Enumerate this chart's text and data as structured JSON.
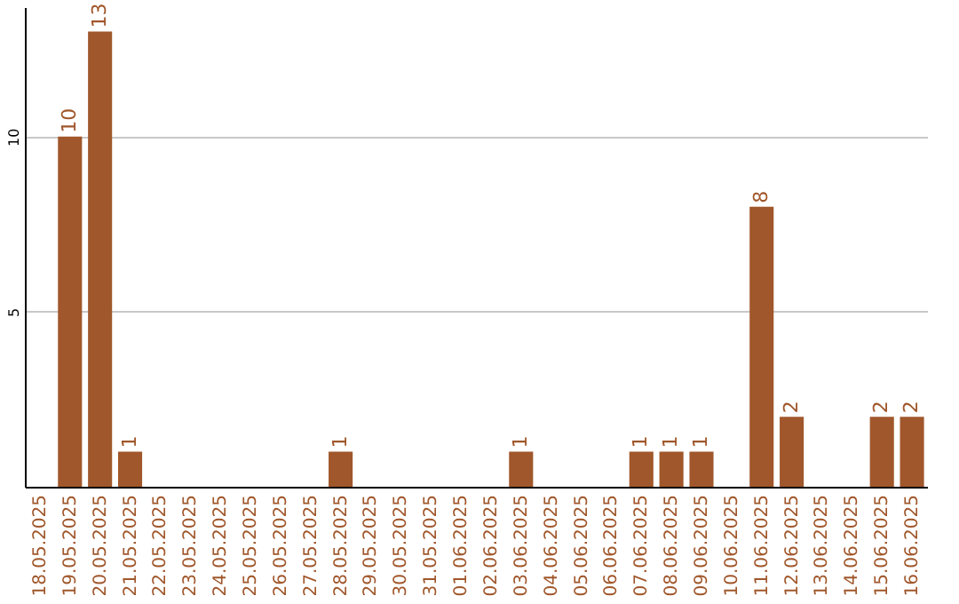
{
  "chart_data": {
    "type": "bar",
    "categories": [
      "18.05.2025",
      "19.05.2025",
      "20.05.2025",
      "21.05.2025",
      "22.05.2025",
      "23.05.2025",
      "24.05.2025",
      "25.05.2025",
      "26.05.2025",
      "27.05.2025",
      "28.05.2025",
      "29.05.2025",
      "30.05.2025",
      "31.05.2025",
      "01.06.2025",
      "02.06.2025",
      "03.06.2025",
      "04.06.2025",
      "05.06.2025",
      "06.06.2025",
      "07.06.2025",
      "08.06.2025",
      "09.06.2025",
      "10.06.2025",
      "11.06.2025",
      "12.06.2025",
      "13.06.2025",
      "14.06.2025",
      "15.06.2025",
      "16.06.2025"
    ],
    "values": [
      0,
      10,
      13,
      1,
      0,
      0,
      0,
      0,
      0,
      0,
      1,
      0,
      0,
      0,
      0,
      0,
      1,
      0,
      0,
      0,
      1,
      1,
      1,
      0,
      8,
      2,
      0,
      0,
      2,
      2
    ],
    "value_labels": [
      null,
      "10",
      "13",
      "1",
      null,
      null,
      null,
      null,
      null,
      null,
      "1",
      null,
      null,
      null,
      null,
      null,
      "1",
      null,
      null,
      null,
      "1",
      "1",
      "1",
      null,
      "8",
      "2",
      null,
      null,
      "2",
      "2"
    ],
    "color": "#a0572b",
    "ylim": [
      0,
      13.7
    ],
    "yticks": [
      5,
      10
    ],
    "grid": "y"
  }
}
